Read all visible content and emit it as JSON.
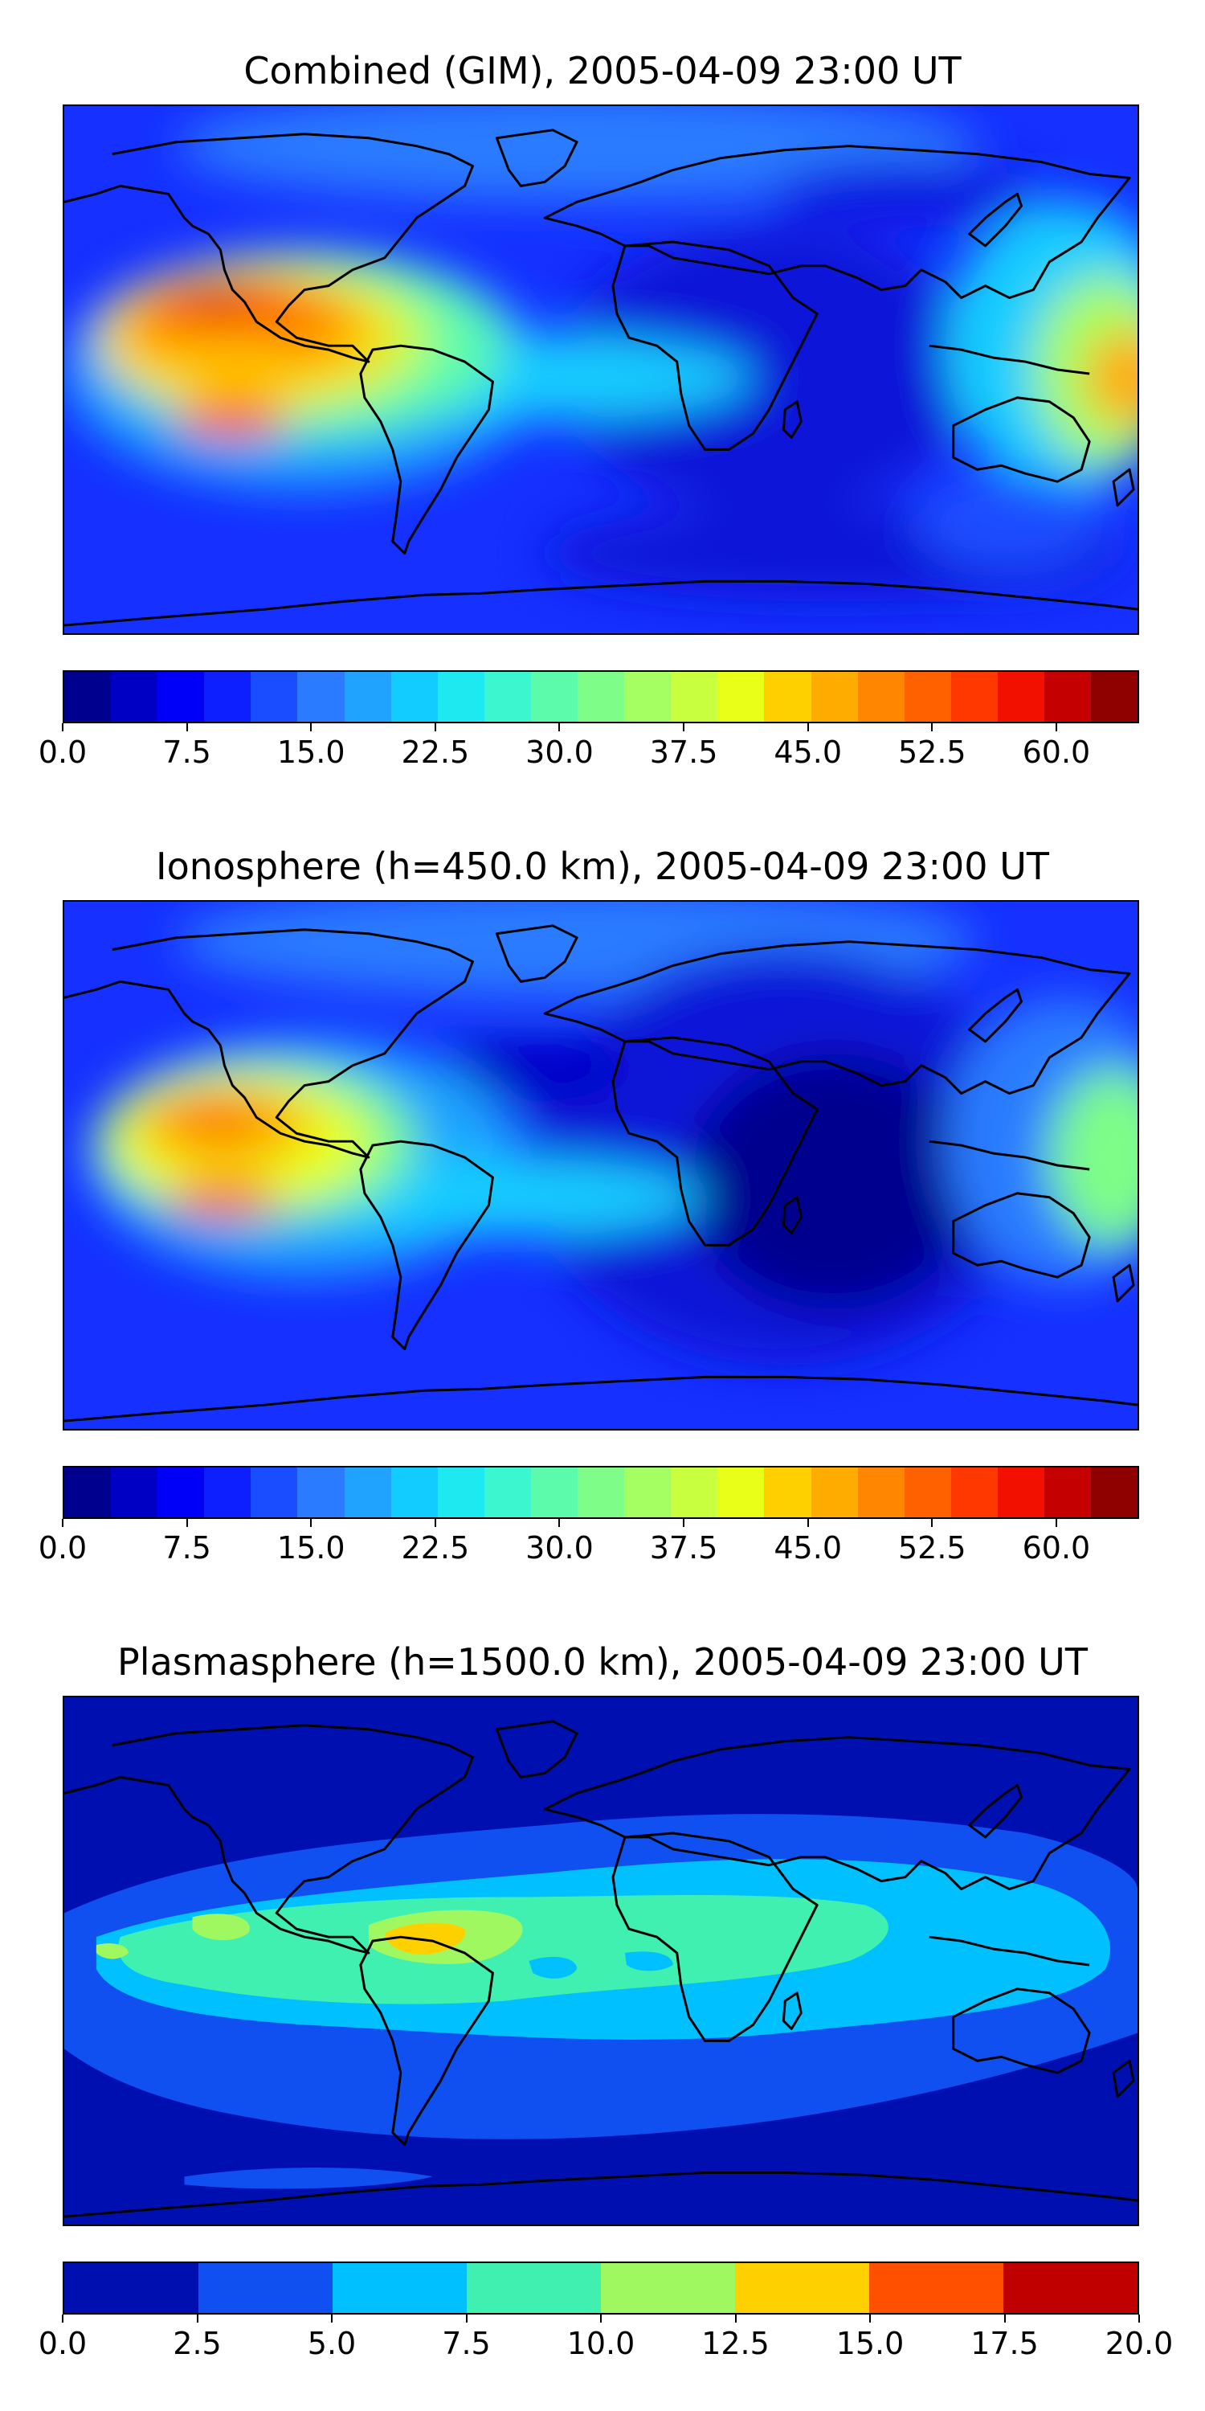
{
  "panels": [
    {
      "title": "Combined (GIM), 2005-04-09 23:00 UT",
      "colorbar": {
        "colors": [
          "#00008f",
          "#0000c4",
          "#0000f8",
          "#0d1fff",
          "#1a4dff",
          "#2a7bff",
          "#1fa3ff",
          "#12ccff",
          "#1ee8f0",
          "#3cf6d0",
          "#5cfbac",
          "#7efd88",
          "#a5fe62",
          "#c8ff3e",
          "#eaff18",
          "#ffd000",
          "#ffac00",
          "#ff8600",
          "#ff6000",
          "#ff3800",
          "#f21100",
          "#c40000",
          "#8f0000"
        ],
        "ticks": [
          "0.0",
          "7.5",
          "15.0",
          "22.5",
          "30.0",
          "37.5",
          "45.0",
          "52.5",
          "60.0"
        ],
        "tick_values": [
          0,
          7.5,
          15,
          22.5,
          30,
          37.5,
          45,
          52.5,
          60
        ],
        "range": [
          0,
          65
        ]
      }
    },
    {
      "title": "Ionosphere  (h=450.0 km), 2005-04-09 23:00 UT",
      "colorbar": {
        "colors": [
          "#00008f",
          "#0000c4",
          "#0000f8",
          "#0d1fff",
          "#1a4dff",
          "#2a7bff",
          "#1fa3ff",
          "#12ccff",
          "#1ee8f0",
          "#3cf6d0",
          "#5cfbac",
          "#7efd88",
          "#a5fe62",
          "#c8ff3e",
          "#eaff18",
          "#ffd000",
          "#ffac00",
          "#ff8600",
          "#ff6000",
          "#ff3800",
          "#f21100",
          "#c40000",
          "#8f0000"
        ],
        "ticks": [
          "0.0",
          "7.5",
          "15.0",
          "22.5",
          "30.0",
          "37.5",
          "45.0",
          "52.5",
          "60.0"
        ],
        "tick_values": [
          0,
          7.5,
          15,
          22.5,
          30,
          37.5,
          45,
          52.5,
          60
        ],
        "range": [
          0,
          65
        ]
      }
    },
    {
      "title": "Plasmasphere (h=1500.0 km), 2005-04-09 23:00 UT",
      "colorbar": {
        "colors": [
          "#0010b0",
          "#1050f0",
          "#00c0ff",
          "#40f0b0",
          "#a0f860",
          "#ffd000",
          "#ff5000",
          "#c00000"
        ],
        "ticks": [
          "0.0",
          "2.5",
          "5.0",
          "7.5",
          "10.0",
          "12.5",
          "15.0",
          "17.5",
          "20.0"
        ],
        "tick_values": [
          0,
          2.5,
          5,
          7.5,
          10,
          12.5,
          15,
          17.5,
          20
        ],
        "range": [
          0,
          20
        ]
      }
    }
  ]
}
